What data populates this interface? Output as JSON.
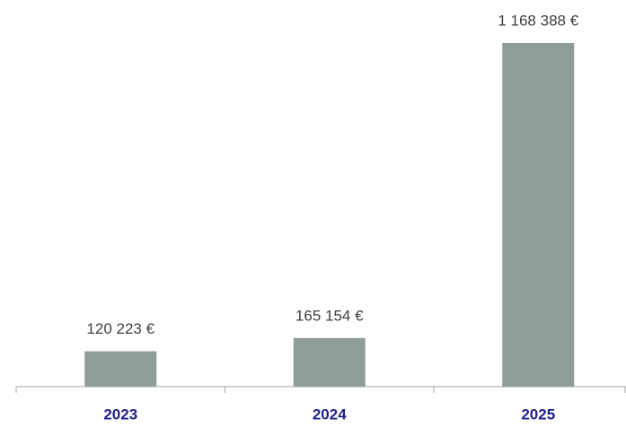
{
  "chart_data": {
    "type": "bar",
    "categories": [
      "2023",
      "2024",
      "2025"
    ],
    "values": [
      120223,
      165154,
      1168388
    ],
    "value_labels": [
      "120 223 €",
      "165 154 €",
      "1 168 388 €"
    ],
    "color": "#8e9c9a"
  }
}
